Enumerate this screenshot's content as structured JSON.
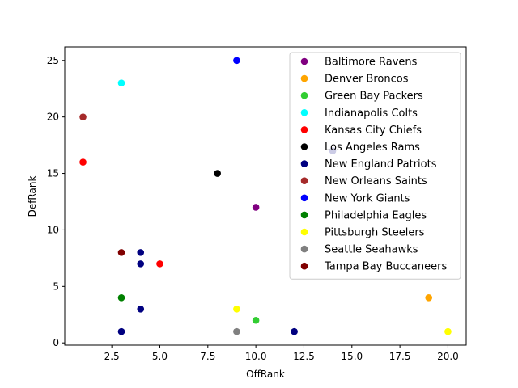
{
  "chart_data": {
    "type": "scatter",
    "xlabel": "OffRank",
    "ylabel": "DefRank",
    "xlim": [
      0.05,
      20.95
    ],
    "ylim": [
      -0.2,
      26.2
    ],
    "x_ticks": [
      2.5,
      5.0,
      7.5,
      10.0,
      12.5,
      15.0,
      17.5,
      20.0
    ],
    "x_tick_labels": [
      "2.5",
      "5.0",
      "7.5",
      "10.0",
      "12.5",
      "15.0",
      "17.5",
      "20.0"
    ],
    "y_ticks": [
      0,
      5,
      10,
      15,
      20,
      25
    ],
    "y_tick_labels": [
      "0",
      "5",
      "10",
      "15",
      "20",
      "25"
    ],
    "grid": false,
    "legend_position": "upper-right",
    "series": [
      {
        "name": "Baltimore Ravens",
        "color": "#800080",
        "points": [
          [
            10,
            12
          ]
        ]
      },
      {
        "name": "Denver Broncos",
        "color": "#ffa500",
        "points": [
          [
            19,
            4
          ]
        ]
      },
      {
        "name": "Green Bay Packers",
        "color": "#32cd32",
        "points": [
          [
            10,
            2
          ]
        ]
      },
      {
        "name": "Indianapolis Colts",
        "color": "#00ffff",
        "points": [
          [
            3,
            23
          ]
        ]
      },
      {
        "name": "Kansas City Chiefs",
        "color": "#ff0000",
        "points": [
          [
            1,
            16
          ],
          [
            5,
            7
          ]
        ]
      },
      {
        "name": "Los Angeles Rams",
        "color": "#000000",
        "points": [
          [
            8,
            15
          ]
        ]
      },
      {
        "name": "New England Patriots",
        "color": "#000080",
        "points": [
          [
            3,
            1
          ],
          [
            4,
            3
          ],
          [
            4,
            7
          ],
          [
            4,
            8
          ],
          [
            12,
            1
          ],
          [
            14,
            17
          ]
        ]
      },
      {
        "name": "New Orleans Saints",
        "color": "#a52a2a",
        "points": [
          [
            1,
            20
          ]
        ]
      },
      {
        "name": "New York Giants",
        "color": "#0000ff",
        "points": [
          [
            9,
            25
          ]
        ]
      },
      {
        "name": "Philadelphia Eagles",
        "color": "#008000",
        "points": [
          [
            3,
            4
          ]
        ]
      },
      {
        "name": "Pittsburgh Steelers",
        "color": "#ffff00",
        "points": [
          [
            9,
            3
          ],
          [
            20,
            1
          ]
        ]
      },
      {
        "name": "Seattle Seahawks",
        "color": "#808080",
        "points": [
          [
            9,
            1
          ]
        ]
      },
      {
        "name": "Tampa Bay Buccaneers",
        "color": "#800000",
        "points": [
          [
            3,
            8
          ]
        ]
      }
    ]
  }
}
